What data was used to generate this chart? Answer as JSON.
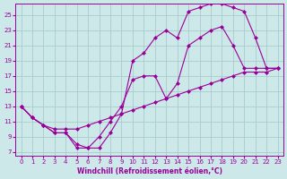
{
  "xlabel": "Windchill (Refroidissement éolien,°C)",
  "bg_color": "#cce8e8",
  "grid_color": "#aacccc",
  "line_color": "#990099",
  "xlim": [
    -0.5,
    23.5
  ],
  "ylim": [
    6.5,
    26.5
  ],
  "xticks": [
    0,
    1,
    2,
    3,
    4,
    5,
    6,
    7,
    8,
    9,
    10,
    11,
    12,
    13,
    14,
    15,
    16,
    17,
    18,
    19,
    20,
    21,
    22,
    23
  ],
  "yticks": [
    7,
    9,
    11,
    13,
    15,
    17,
    19,
    21,
    23,
    25
  ],
  "curve1_x": [
    0,
    1,
    2,
    3,
    4,
    5,
    6,
    7,
    8,
    9,
    10,
    11,
    12,
    13,
    14,
    15,
    16,
    17,
    18,
    19,
    20,
    21,
    22,
    23
  ],
  "curve1_y": [
    13,
    11.5,
    10.5,
    9.5,
    9.5,
    7.5,
    7.5,
    7.5,
    9.5,
    12,
    19,
    20,
    22,
    23,
    22,
    25.5,
    26,
    26.5,
    26.5,
    26,
    25.5,
    22,
    18,
    18
  ],
  "curve2_x": [
    0,
    1,
    2,
    3,
    4,
    5,
    6,
    7,
    8,
    9,
    10,
    11,
    12,
    13,
    14,
    15,
    16,
    17,
    18,
    19,
    20,
    21,
    22,
    23
  ],
  "curve2_y": [
    13,
    11.5,
    10.5,
    9.5,
    9.5,
    8,
    7.5,
    9,
    11,
    13,
    16.5,
    17,
    17,
    14,
    16,
    21,
    22,
    23,
    23.5,
    21,
    18,
    18,
    18,
    18
  ],
  "curve3_x": [
    0,
    1,
    2,
    3,
    4,
    5,
    6,
    7,
    8,
    9,
    10,
    11,
    12,
    13,
    14,
    15,
    16,
    17,
    18,
    19,
    20,
    21,
    22,
    23
  ],
  "curve3_y": [
    13,
    11.5,
    10.5,
    10,
    10,
    10,
    10.5,
    11,
    11.5,
    12,
    12.5,
    13,
    13.5,
    14,
    14.5,
    15,
    15.5,
    16,
    16.5,
    17,
    17.5,
    17.5,
    17.5,
    18
  ]
}
